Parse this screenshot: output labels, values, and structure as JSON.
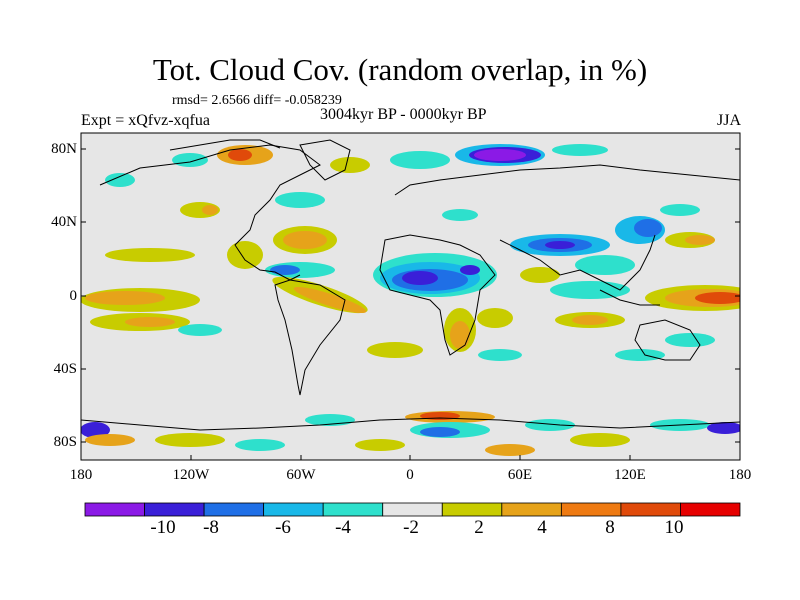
{
  "title": "Tot. Cloud Cov. (random overlap, in %)",
  "stats": "rmsd= 2.6566 diff= -0.058239",
  "experiment": "Expt = xQfvz-xqfua",
  "period": "3004kyr BP - 0000kyr BP",
  "season": "JJA",
  "lat_ticks": [
    "80N",
    "40N",
    "0",
    "40S",
    "80S"
  ],
  "lon_ticks": [
    "180",
    "120W",
    "60W",
    "0",
    "60E",
    "120E",
    "180"
  ],
  "legend": {
    "colors": [
      "#8b1ae6",
      "#3a1fd8",
      "#1f6fe6",
      "#19b8e8",
      "#2ee0cc",
      "#e6e6e6",
      "#c8cc00",
      "#e6a31a",
      "#ee7a12",
      "#e04a0a",
      "#e60000"
    ],
    "labels": [
      "-10",
      "-8",
      "-6",
      "-4",
      "-2",
      "2",
      "4",
      "8",
      "10"
    ]
  },
  "map_colors": {
    "background": "#e6e6e6",
    "coast": "#000000"
  }
}
